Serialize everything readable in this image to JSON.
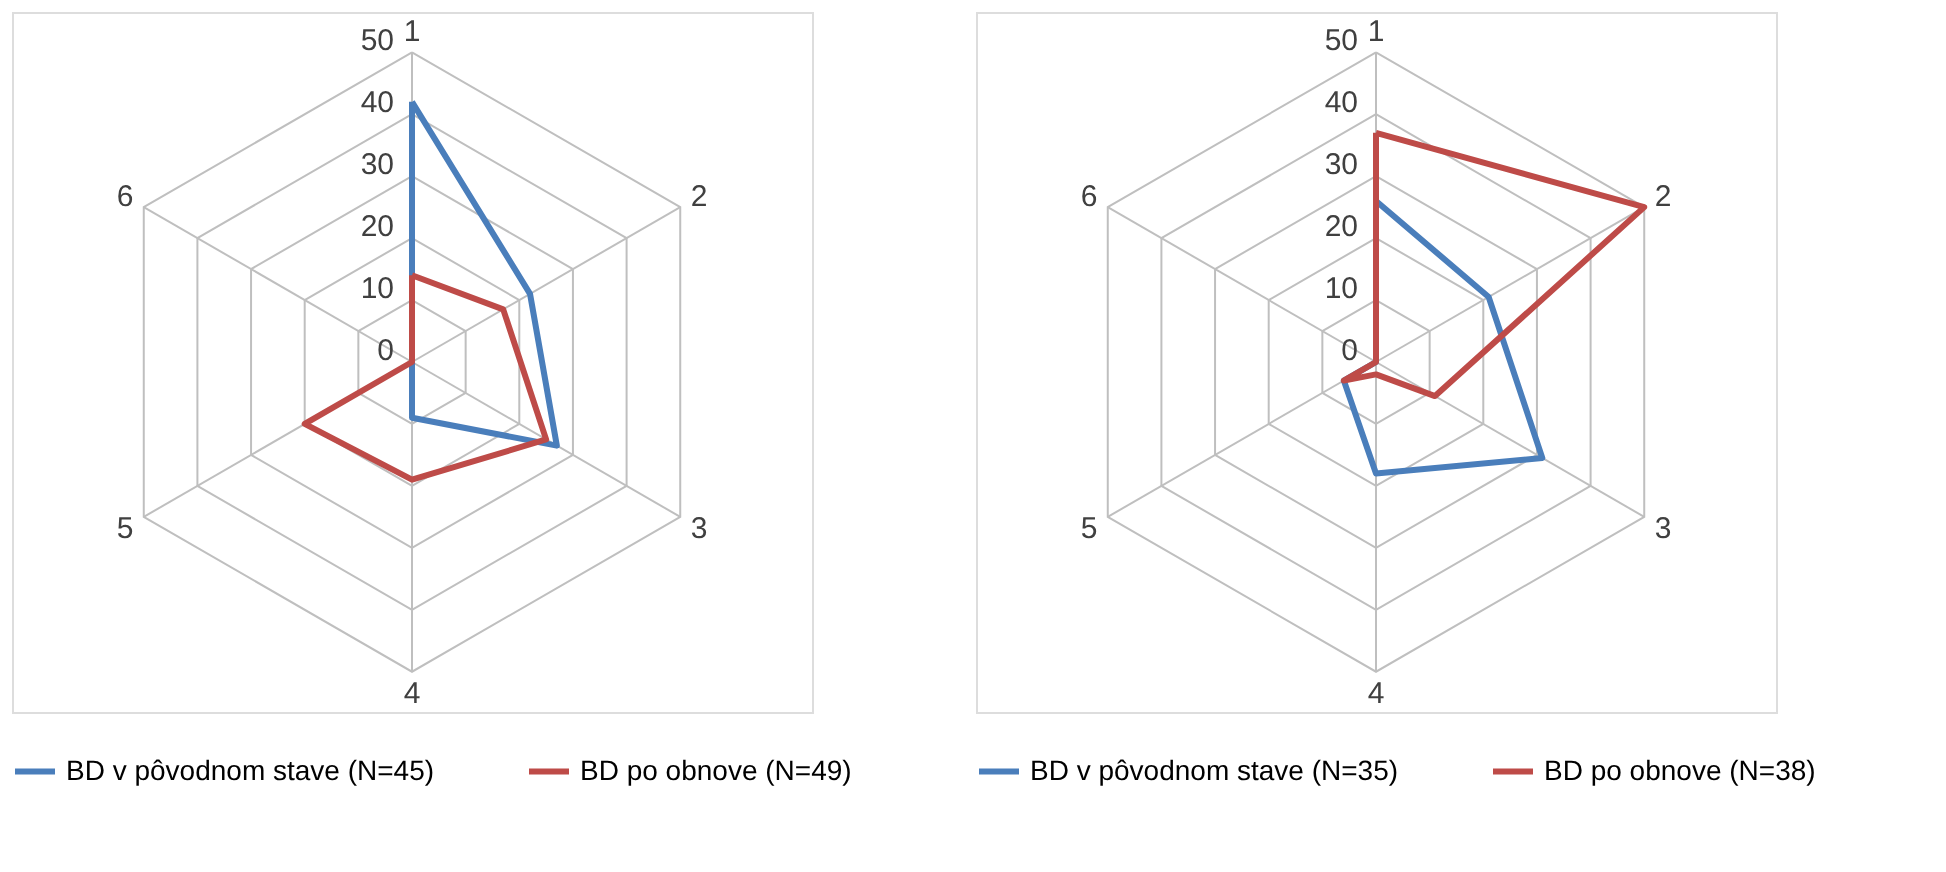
{
  "chart_data": [
    {
      "type": "radar",
      "categories": [
        "1",
        "2",
        "3",
        "4",
        "5",
        "6"
      ],
      "ylim": [
        0,
        50
      ],
      "yticks": [
        0,
        10,
        20,
        30,
        40,
        50
      ],
      "grid": true,
      "legend": "bottom",
      "series": [
        {
          "name": "BD v pôvodnom stave (N=45)",
          "color": "#4a7ebb",
          "values": [
            42,
            22,
            27,
            9,
            0,
            0
          ]
        },
        {
          "name": "BD po obnove (N=49)",
          "color": "#be4b48",
          "values": [
            14,
            17,
            25,
            19,
            20,
            0
          ]
        }
      ]
    },
    {
      "type": "radar",
      "categories": [
        "1",
        "2",
        "3",
        "4",
        "5",
        "6"
      ],
      "ylim": [
        0,
        50
      ],
      "yticks": [
        0,
        10,
        20,
        30,
        40,
        50
      ],
      "grid": true,
      "legend": "bottom",
      "series": [
        {
          "name": "BD v pôvodnom stave (N=35)",
          "color": "#4a7ebb",
          "values": [
            26,
            21,
            31,
            18,
            6,
            0
          ]
        },
        {
          "name": "BD po obnove (N=38)",
          "color": "#be4b48",
          "values": [
            37,
            50,
            11,
            2,
            6,
            0
          ]
        }
      ]
    }
  ]
}
